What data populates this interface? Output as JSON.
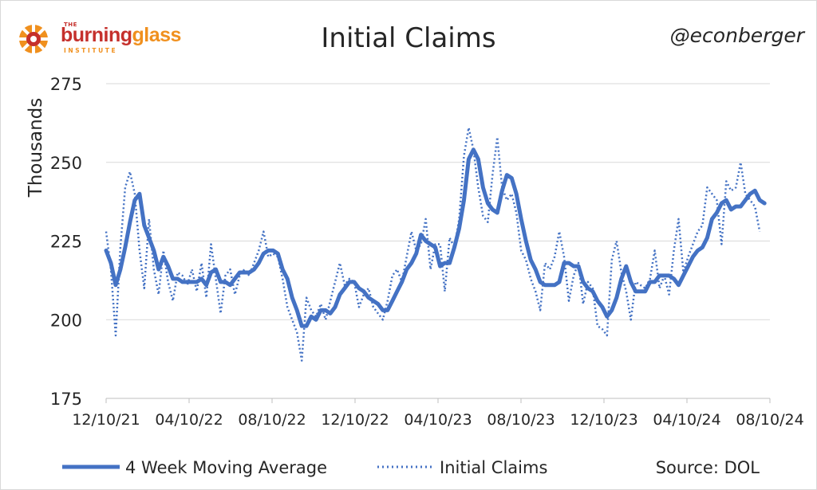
{
  "header": {
    "title": "Initial Claims",
    "handle": "@econberger",
    "logo": {
      "the": "THE",
      "word1": "burning",
      "word2": "glass",
      "sub": "INSTITUTE"
    }
  },
  "footer": {
    "legend_ma": "4 Week Moving Average",
    "legend_claims": "Initial Claims",
    "source": "Source: DOL"
  },
  "colors": {
    "series": "#4472c4",
    "grid": "#d9d9d9",
    "text": "#262626",
    "logo_red": "#c5302c",
    "logo_orange": "#f0901e"
  },
  "chart_data": {
    "type": "line",
    "title": "Initial Claims",
    "ylabel": "Thousands",
    "xlabel": "",
    "ylim": [
      175,
      275
    ],
    "yticks": [
      175,
      200,
      225,
      250,
      275
    ],
    "xticks": [
      "12/10/21",
      "04/10/22",
      "08/10/22",
      "12/10/22",
      "04/10/23",
      "08/10/23",
      "12/10/23",
      "04/10/24",
      "08/10/24"
    ],
    "grid": true,
    "legend_position": "bottom",
    "x_start": "2021-12-10",
    "x_end": "2024-08-10",
    "series": [
      {
        "name": "4 Week Moving Average",
        "style": "solid",
        "points": [
          [
            "2021-12-10",
            222
          ],
          [
            "2021-12-17",
            218
          ],
          [
            "2021-12-24",
            211
          ],
          [
            "2021-12-31",
            216
          ],
          [
            "2022-01-07",
            223
          ],
          [
            "2022-01-14",
            231
          ],
          [
            "2022-01-21",
            238
          ],
          [
            "2022-01-28",
            240
          ],
          [
            "2022-02-04",
            230
          ],
          [
            "2022-02-11",
            226
          ],
          [
            "2022-02-18",
            222
          ],
          [
            "2022-02-25",
            216
          ],
          [
            "2022-03-04",
            220
          ],
          [
            "2022-03-11",
            217
          ],
          [
            "2022-03-18",
            213
          ],
          [
            "2022-03-25",
            213
          ],
          [
            "2022-04-01",
            212
          ],
          [
            "2022-04-08",
            212
          ],
          [
            "2022-04-15",
            212
          ],
          [
            "2022-04-22",
            212
          ],
          [
            "2022-04-29",
            213
          ],
          [
            "2022-05-06",
            211
          ],
          [
            "2022-05-13",
            215
          ],
          [
            "2022-05-20",
            216
          ],
          [
            "2022-05-27",
            212
          ],
          [
            "2022-06-03",
            212
          ],
          [
            "2022-06-10",
            211
          ],
          [
            "2022-06-17",
            213
          ],
          [
            "2022-06-24",
            215
          ],
          [
            "2022-07-01",
            215
          ],
          [
            "2022-07-08",
            215
          ],
          [
            "2022-07-15",
            216
          ],
          [
            "2022-07-22",
            218
          ],
          [
            "2022-07-29",
            221
          ],
          [
            "2022-08-05",
            222
          ],
          [
            "2022-08-12",
            222
          ],
          [
            "2022-08-19",
            221
          ],
          [
            "2022-08-26",
            216
          ],
          [
            "2022-09-02",
            213
          ],
          [
            "2022-09-09",
            207
          ],
          [
            "2022-09-16",
            203
          ],
          [
            "2022-09-23",
            198
          ],
          [
            "2022-09-30",
            198
          ],
          [
            "2022-10-07",
            201
          ],
          [
            "2022-10-14",
            200
          ],
          [
            "2022-10-21",
            203
          ],
          [
            "2022-10-28",
            203
          ],
          [
            "2022-11-04",
            202
          ],
          [
            "2022-11-11",
            204
          ],
          [
            "2022-11-18",
            208
          ],
          [
            "2022-11-25",
            210
          ],
          [
            "2022-12-02",
            212
          ],
          [
            "2022-12-09",
            212
          ],
          [
            "2022-12-16",
            210
          ],
          [
            "2022-12-23",
            209
          ],
          [
            "2022-12-30",
            207
          ],
          [
            "2023-01-06",
            206
          ],
          [
            "2023-01-13",
            205
          ],
          [
            "2023-01-20",
            203
          ],
          [
            "2023-01-27",
            203
          ],
          [
            "2023-02-03",
            206
          ],
          [
            "2023-02-10",
            209
          ],
          [
            "2023-02-17",
            212
          ],
          [
            "2023-02-24",
            216
          ],
          [
            "2023-03-03",
            218
          ],
          [
            "2023-03-10",
            221
          ],
          [
            "2023-03-17",
            227
          ],
          [
            "2023-03-24",
            225
          ],
          [
            "2023-03-31",
            224
          ],
          [
            "2023-04-07",
            223
          ],
          [
            "2023-04-14",
            217
          ],
          [
            "2023-04-21",
            218
          ],
          [
            "2023-04-28",
            218
          ],
          [
            "2023-05-05",
            223
          ],
          [
            "2023-05-12",
            229
          ],
          [
            "2023-05-19",
            238
          ],
          [
            "2023-05-26",
            251
          ],
          [
            "2023-06-02",
            254
          ],
          [
            "2023-06-09",
            251
          ],
          [
            "2023-06-16",
            242
          ],
          [
            "2023-06-23",
            237
          ],
          [
            "2023-06-30",
            235
          ],
          [
            "2023-07-07",
            234
          ],
          [
            "2023-07-14",
            241
          ],
          [
            "2023-07-21",
            246
          ],
          [
            "2023-07-28",
            245
          ],
          [
            "2023-08-04",
            240
          ],
          [
            "2023-08-11",
            232
          ],
          [
            "2023-08-18",
            225
          ],
          [
            "2023-08-25",
            219
          ],
          [
            "2023-09-01",
            216
          ],
          [
            "2023-09-08",
            212
          ],
          [
            "2023-09-15",
            211
          ],
          [
            "2023-09-22",
            211
          ],
          [
            "2023-09-29",
            211
          ],
          [
            "2023-10-06",
            212
          ],
          [
            "2023-10-13",
            218
          ],
          [
            "2023-10-20",
            218
          ],
          [
            "2023-10-27",
            217
          ],
          [
            "2023-11-03",
            217
          ],
          [
            "2023-11-10",
            212
          ],
          [
            "2023-11-17",
            210
          ],
          [
            "2023-11-24",
            209
          ],
          [
            "2023-12-01",
            206
          ],
          [
            "2023-12-08",
            204
          ],
          [
            "2023-12-15",
            201
          ],
          [
            "2023-12-22",
            203
          ],
          [
            "2023-12-29",
            207
          ],
          [
            "2024-01-05",
            213
          ],
          [
            "2024-01-12",
            217
          ],
          [
            "2024-01-19",
            212
          ],
          [
            "2024-01-26",
            209
          ],
          [
            "2024-02-02",
            209
          ],
          [
            "2024-02-09",
            209
          ],
          [
            "2024-02-16",
            212
          ],
          [
            "2024-02-23",
            212
          ],
          [
            "2024-03-01",
            214
          ],
          [
            "2024-03-08",
            214
          ],
          [
            "2024-03-15",
            214
          ],
          [
            "2024-03-22",
            213
          ],
          [
            "2024-03-29",
            211
          ],
          [
            "2024-04-05",
            214
          ],
          [
            "2024-04-12",
            217
          ],
          [
            "2024-04-19",
            220
          ],
          [
            "2024-04-26",
            222
          ],
          [
            "2024-05-03",
            223
          ],
          [
            "2024-05-10",
            226
          ],
          [
            "2024-05-17",
            232
          ],
          [
            "2024-05-24",
            234
          ],
          [
            "2024-05-31",
            237
          ],
          [
            "2024-06-07",
            238
          ],
          [
            "2024-06-14",
            235
          ],
          [
            "2024-06-21",
            236
          ],
          [
            "2024-06-28",
            236
          ],
          [
            "2024-07-05",
            238
          ],
          [
            "2024-07-12",
            240
          ],
          [
            "2024-07-19",
            241
          ],
          [
            "2024-07-26",
            238
          ],
          [
            "2024-08-02",
            237
          ]
        ]
      },
      {
        "name": "Initial Claims",
        "style": "dotted",
        "points": [
          [
            "2021-12-10",
            228
          ],
          [
            "2021-12-17",
            216
          ],
          [
            "2021-12-24",
            195
          ],
          [
            "2021-12-31",
            223
          ],
          [
            "2022-01-07",
            242
          ],
          [
            "2022-01-14",
            247
          ],
          [
            "2022-01-21",
            240
          ],
          [
            "2022-01-28",
            222
          ],
          [
            "2022-02-04",
            210
          ],
          [
            "2022-02-11",
            232
          ],
          [
            "2022-02-18",
            216
          ],
          [
            "2022-02-25",
            208
          ],
          [
            "2022-03-04",
            222
          ],
          [
            "2022-03-11",
            212
          ],
          [
            "2022-03-18",
            206
          ],
          [
            "2022-03-25",
            215
          ],
          [
            "2022-04-01",
            214
          ],
          [
            "2022-04-08",
            211
          ],
          [
            "2022-04-15",
            216
          ],
          [
            "2022-04-22",
            209
          ],
          [
            "2022-04-29",
            218
          ],
          [
            "2022-05-06",
            207
          ],
          [
            "2022-05-13",
            224
          ],
          [
            "2022-05-20",
            213
          ],
          [
            "2022-05-27",
            202
          ],
          [
            "2022-06-03",
            214
          ],
          [
            "2022-06-10",
            216
          ],
          [
            "2022-06-17",
            208
          ],
          [
            "2022-06-24",
            214
          ],
          [
            "2022-07-01",
            216
          ],
          [
            "2022-07-08",
            214
          ],
          [
            "2022-07-15",
            218
          ],
          [
            "2022-07-22",
            222
          ],
          [
            "2022-07-29",
            228
          ],
          [
            "2022-08-05",
            220
          ],
          [
            "2022-08-12",
            221
          ],
          [
            "2022-08-19",
            220
          ],
          [
            "2022-08-26",
            213
          ],
          [
            "2022-09-02",
            204
          ],
          [
            "2022-09-09",
            200
          ],
          [
            "2022-09-16",
            196
          ],
          [
            "2022-09-23",
            187
          ],
          [
            "2022-09-30",
            207
          ],
          [
            "2022-10-07",
            203
          ],
          [
            "2022-10-14",
            201
          ],
          [
            "2022-10-21",
            205
          ],
          [
            "2022-10-28",
            200
          ],
          [
            "2022-11-04",
            206
          ],
          [
            "2022-11-11",
            212
          ],
          [
            "2022-11-18",
            218
          ],
          [
            "2022-11-25",
            211
          ],
          [
            "2022-12-02",
            213
          ],
          [
            "2022-12-09",
            212
          ],
          [
            "2022-12-16",
            204
          ],
          [
            "2022-12-23",
            208
          ],
          [
            "2022-12-30",
            210
          ],
          [
            "2023-01-06",
            204
          ],
          [
            "2023-01-13",
            202
          ],
          [
            "2023-01-20",
            200
          ],
          [
            "2023-01-27",
            206
          ],
          [
            "2023-02-03",
            214
          ],
          [
            "2023-02-10",
            216
          ],
          [
            "2023-02-17",
            212
          ],
          [
            "2023-02-24",
            220
          ],
          [
            "2023-03-03",
            228
          ],
          [
            "2023-03-10",
            222
          ],
          [
            "2023-03-17",
            224
          ],
          [
            "2023-03-24",
            232
          ],
          [
            "2023-03-31",
            216
          ],
          [
            "2023-04-07",
            224
          ],
          [
            "2023-04-14",
            224
          ],
          [
            "2023-04-21",
            209
          ],
          [
            "2023-04-28",
            226
          ],
          [
            "2023-05-05",
            223
          ],
          [
            "2023-05-12",
            232
          ],
          [
            "2023-05-19",
            252
          ],
          [
            "2023-05-26",
            261
          ],
          [
            "2023-06-02",
            254
          ],
          [
            "2023-06-09",
            242
          ],
          [
            "2023-06-16",
            233
          ],
          [
            "2023-06-23",
            231
          ],
          [
            "2023-06-30",
            246
          ],
          [
            "2023-07-07",
            258
          ],
          [
            "2023-07-14",
            242
          ],
          [
            "2023-07-21",
            238
          ],
          [
            "2023-07-28",
            240
          ],
          [
            "2023-08-04",
            234
          ],
          [
            "2023-08-11",
            222
          ],
          [
            "2023-08-18",
            219
          ],
          [
            "2023-08-25",
            213
          ],
          [
            "2023-09-01",
            209
          ],
          [
            "2023-09-08",
            203
          ],
          [
            "2023-09-15",
            218
          ],
          [
            "2023-09-22",
            216
          ],
          [
            "2023-09-29",
            220
          ],
          [
            "2023-10-06",
            228
          ],
          [
            "2023-10-13",
            220
          ],
          [
            "2023-10-20",
            206
          ],
          [
            "2023-10-27",
            214
          ],
          [
            "2023-11-03",
            218
          ],
          [
            "2023-11-10",
            205
          ],
          [
            "2023-11-17",
            212
          ],
          [
            "2023-11-24",
            210
          ],
          [
            "2023-12-01",
            198
          ],
          [
            "2023-12-08",
            197
          ],
          [
            "2023-12-15",
            195
          ],
          [
            "2023-12-22",
            219
          ],
          [
            "2023-12-29",
            225
          ],
          [
            "2024-01-05",
            215
          ],
          [
            "2024-01-12",
            209
          ],
          [
            "2024-01-19",
            200
          ],
          [
            "2024-01-26",
            212
          ],
          [
            "2024-02-02",
            211
          ],
          [
            "2024-02-09",
            210
          ],
          [
            "2024-02-16",
            213
          ],
          [
            "2024-02-23",
            222
          ],
          [
            "2024-03-01",
            210
          ],
          [
            "2024-03-08",
            214
          ],
          [
            "2024-03-15",
            208
          ],
          [
            "2024-03-22",
            222
          ],
          [
            "2024-03-29",
            232
          ],
          [
            "2024-04-05",
            215
          ],
          [
            "2024-04-12",
            220
          ],
          [
            "2024-04-19",
            224
          ],
          [
            "2024-04-26",
            228
          ],
          [
            "2024-05-03",
            230
          ],
          [
            "2024-05-10",
            242
          ],
          [
            "2024-05-17",
            240
          ],
          [
            "2024-05-24",
            238
          ],
          [
            "2024-05-31",
            224
          ],
          [
            "2024-06-07",
            244
          ],
          [
            "2024-06-14",
            241
          ],
          [
            "2024-06-21",
            242
          ],
          [
            "2024-06-28",
            250
          ],
          [
            "2024-07-05",
            240
          ],
          [
            "2024-07-12",
            238
          ],
          [
            "2024-07-19",
            236
          ],
          [
            "2024-07-26",
            228
          ]
        ]
      }
    ]
  }
}
